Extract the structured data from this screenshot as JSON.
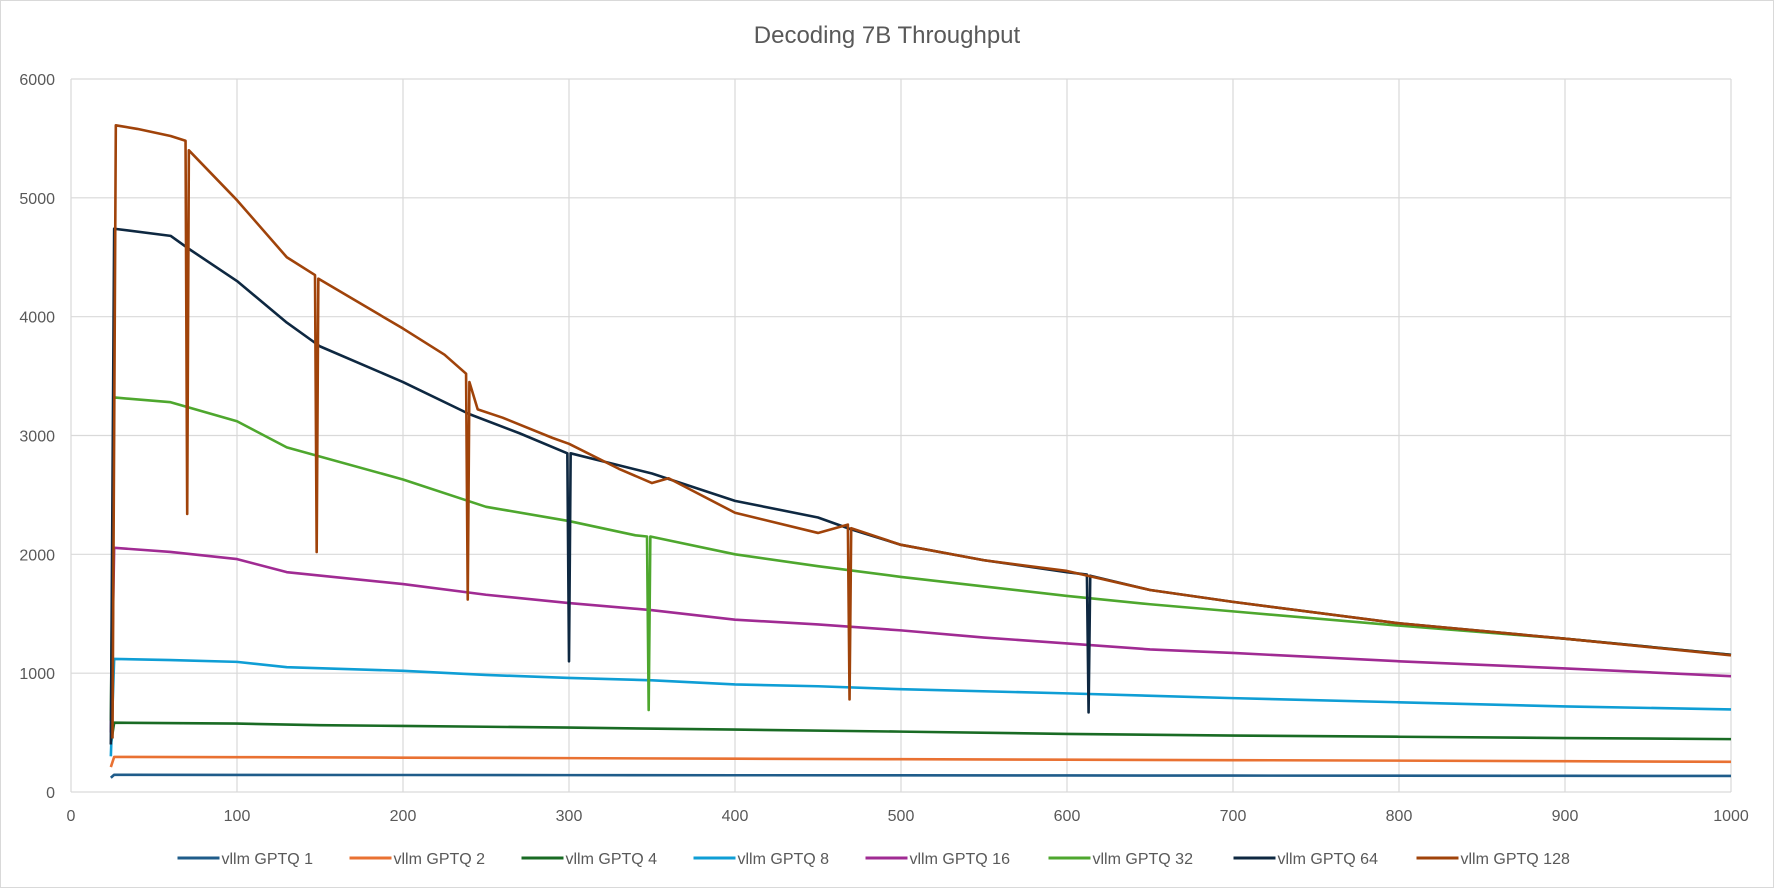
{
  "chart_data": {
    "type": "line",
    "title": "Decoding 7B Throughput",
    "xlabel": "",
    "ylabel": "",
    "xlim": [
      0,
      1000
    ],
    "ylim": [
      0,
      6000
    ],
    "x_ticks": [
      0,
      100,
      200,
      300,
      400,
      500,
      600,
      700,
      800,
      900,
      1000
    ],
    "y_ticks": [
      0,
      1000,
      2000,
      3000,
      4000,
      5000,
      6000
    ],
    "grid": true,
    "legend_position": "bottom",
    "series": [
      {
        "name": "vllm GPTQ  1",
        "color": "#1f5c8a",
        "points": [
          [
            24,
            120
          ],
          [
            26,
            145
          ],
          [
            100,
            144
          ],
          [
            200,
            143
          ],
          [
            300,
            142
          ],
          [
            400,
            141
          ],
          [
            500,
            140
          ],
          [
            600,
            139
          ],
          [
            700,
            138
          ],
          [
            800,
            137
          ],
          [
            900,
            136
          ],
          [
            1000,
            135
          ]
        ]
      },
      {
        "name": "vllm GPTQ  2",
        "color": "#e97132",
        "points": [
          [
            24,
            210
          ],
          [
            26,
            295
          ],
          [
            100,
            293
          ],
          [
            200,
            289
          ],
          [
            300,
            285
          ],
          [
            400,
            280
          ],
          [
            500,
            276
          ],
          [
            600,
            272
          ],
          [
            700,
            268
          ],
          [
            800,
            264
          ],
          [
            900,
            259
          ],
          [
            1000,
            254
          ]
        ]
      },
      {
        "name": "vllm GPTQ  4",
        "color": "#196b24",
        "points": [
          [
            24,
            400
          ],
          [
            26,
            583
          ],
          [
            100,
            576
          ],
          [
            150,
            562
          ],
          [
            200,
            556
          ],
          [
            250,
            549
          ],
          [
            300,
            542
          ],
          [
            400,
            525
          ],
          [
            500,
            508
          ],
          [
            600,
            489
          ],
          [
            700,
            475
          ],
          [
            800,
            465
          ],
          [
            900,
            454
          ],
          [
            1000,
            445
          ]
        ]
      },
      {
        "name": "vllm GPTQ  8",
        "color": "#0f9ed5",
        "points": [
          [
            24,
            300
          ],
          [
            26,
            1120
          ],
          [
            60,
            1110
          ],
          [
            100,
            1095
          ],
          [
            130,
            1050
          ],
          [
            200,
            1020
          ],
          [
            250,
            985
          ],
          [
            300,
            960
          ],
          [
            350,
            940
          ],
          [
            400,
            905
          ],
          [
            450,
            890
          ],
          [
            500,
            865
          ],
          [
            600,
            830
          ],
          [
            700,
            790
          ],
          [
            800,
            755
          ],
          [
            900,
            720
          ],
          [
            1000,
            695
          ]
        ]
      },
      {
        "name": "vllm GPTQ  16",
        "color": "#a02b93",
        "points": [
          [
            24,
            500
          ],
          [
            26,
            2055
          ],
          [
            60,
            2020
          ],
          [
            100,
            1960
          ],
          [
            130,
            1850
          ],
          [
            200,
            1750
          ],
          [
            250,
            1660
          ],
          [
            300,
            1590
          ],
          [
            350,
            1530
          ],
          [
            400,
            1450
          ],
          [
            450,
            1410
          ],
          [
            500,
            1360
          ],
          [
            550,
            1300
          ],
          [
            600,
            1250
          ],
          [
            650,
            1200
          ],
          [
            700,
            1170
          ],
          [
            800,
            1100
          ],
          [
            900,
            1040
          ],
          [
            1000,
            975
          ]
        ]
      },
      {
        "name": "vllm GPTQ  32",
        "color": "#4ea72e",
        "points": [
          [
            24,
            600
          ],
          [
            26,
            3320
          ],
          [
            60,
            3280
          ],
          [
            100,
            3120
          ],
          [
            130,
            2900
          ],
          [
            200,
            2630
          ],
          [
            250,
            2400
          ],
          [
            300,
            2280
          ],
          [
            340,
            2160
          ],
          [
            347,
            2150
          ],
          [
            348,
            690
          ],
          [
            349,
            2150
          ],
          [
            400,
            2000
          ],
          [
            450,
            1900
          ],
          [
            500,
            1810
          ],
          [
            550,
            1730
          ],
          [
            600,
            1650
          ],
          [
            650,
            1580
          ],
          [
            700,
            1520
          ],
          [
            800,
            1400
          ],
          [
            900,
            1290
          ],
          [
            1000,
            1155
          ]
        ]
      },
      {
        "name": "vllm GPTQ  64",
        "color": "#0e2841",
        "points": [
          [
            24,
            400
          ],
          [
            26,
            4740
          ],
          [
            60,
            4680
          ],
          [
            70,
            4580
          ],
          [
            100,
            4300
          ],
          [
            130,
            3950
          ],
          [
            150,
            3750
          ],
          [
            200,
            3450
          ],
          [
            240,
            3180
          ],
          [
            270,
            3020
          ],
          [
            299,
            2850
          ],
          [
            300,
            1100
          ],
          [
            301,
            2850
          ],
          [
            350,
            2680
          ],
          [
            400,
            2450
          ],
          [
            450,
            2310
          ],
          [
            470,
            2210
          ],
          [
            500,
            2080
          ],
          [
            550,
            1950
          ],
          [
            600,
            1850
          ],
          [
            612,
            1830
          ],
          [
            613,
            670
          ],
          [
            614,
            1820
          ],
          [
            650,
            1700
          ],
          [
            700,
            1600
          ],
          [
            800,
            1420
          ],
          [
            900,
            1290
          ],
          [
            1000,
            1155
          ]
        ]
      },
      {
        "name": "vllm GPTQ  128",
        "color": "#a0430a",
        "points": [
          [
            25,
            450
          ],
          [
            27,
            5610
          ],
          [
            40,
            5580
          ],
          [
            60,
            5520
          ],
          [
            69,
            5480
          ],
          [
            70,
            2340
          ],
          [
            71,
            5400
          ],
          [
            100,
            4980
          ],
          [
            130,
            4500
          ],
          [
            147,
            4350
          ],
          [
            148,
            2020
          ],
          [
            149,
            4320
          ],
          [
            200,
            3900
          ],
          [
            225,
            3680
          ],
          [
            238,
            3520
          ],
          [
            239,
            1620
          ],
          [
            240,
            3450
          ],
          [
            245,
            3220
          ],
          [
            260,
            3150
          ],
          [
            290,
            2980
          ],
          [
            300,
            2930
          ],
          [
            330,
            2720
          ],
          [
            350,
            2600
          ],
          [
            360,
            2640
          ],
          [
            400,
            2350
          ],
          [
            450,
            2180
          ],
          [
            468,
            2250
          ],
          [
            469,
            780
          ],
          [
            470,
            2220
          ],
          [
            500,
            2080
          ],
          [
            550,
            1950
          ],
          [
            600,
            1860
          ],
          [
            650,
            1700
          ],
          [
            700,
            1600
          ],
          [
            800,
            1420
          ],
          [
            900,
            1290
          ],
          [
            1000,
            1150
          ]
        ]
      }
    ]
  }
}
